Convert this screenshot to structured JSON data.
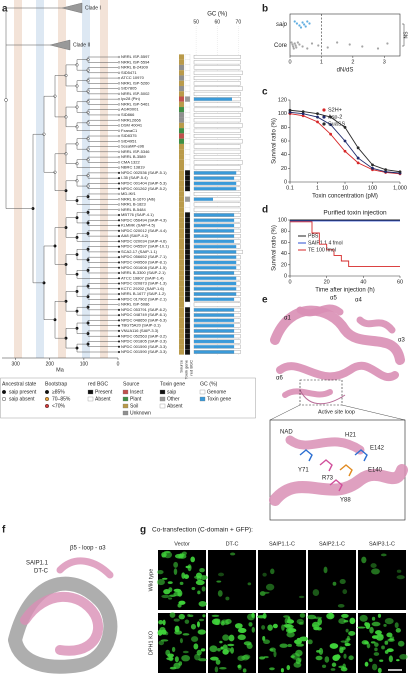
{
  "panel_labels": [
    "a",
    "b",
    "c",
    "d",
    "e",
    "f",
    "g"
  ],
  "tree": {
    "clades": [
      "Clade I",
      "Clade II"
    ],
    "time_axis": {
      "label": "Ma",
      "xlim": [
        340,
        0
      ],
      "xticks": [
        300,
        200,
        100,
        0
      ]
    },
    "gc_axis": {
      "title": "GC (%)",
      "xlim": [
        49,
        76
      ],
      "xticks": [
        50,
        60,
        70
      ]
    },
    "columns": [
      "Source",
      "Toxin gene",
      "red BGC"
    ],
    "leaves": [
      {
        "name": "NRRL ISP-5597",
        "source": "Soil",
        "toxin": "Absent",
        "genome_gc": 71,
        "toxin_gc": null
      },
      {
        "name": "NRRL ISP-5594",
        "source": "Soil",
        "toxin": "Absent",
        "genome_gc": 71,
        "toxin_gc": null
      },
      {
        "name": "NRRL B-24309",
        "source": "Unknown",
        "toxin": "Absent",
        "genome_gc": 71,
        "toxin_gc": null
      },
      {
        "name": "SID5471",
        "source": "Soil",
        "toxin": "Absent",
        "genome_gc": 72,
        "toxin_gc": null
      },
      {
        "name": "ATCC 10970",
        "source": "Unknown",
        "toxin": "Absent",
        "genome_gc": 71,
        "toxin_gc": null
      },
      {
        "name": "NRRL ISP-5260",
        "source": "Soil",
        "toxin": "Absent",
        "genome_gc": 71,
        "toxin_gc": null
      },
      {
        "name": "SID7805",
        "source": "Unknown",
        "toxin": "Absent",
        "genome_gc": 72,
        "toxin_gc": null
      },
      {
        "name": "NRRL ISP-5002",
        "source": "Soil",
        "toxin": "Absent",
        "genome_gc": 71,
        "toxin_gc": null
      },
      {
        "name": "lyc28 (Pin)",
        "source": "Insect",
        "toxin": "Other",
        "genome_gc": 71,
        "toxin_gc": 67
      },
      {
        "name": "NRRL ISP-5461",
        "source": "Soil",
        "toxin": "Absent",
        "genome_gc": 71,
        "toxin_gc": null
      },
      {
        "name": "AGR0001",
        "source": "Plant",
        "toxin": "Absent",
        "genome_gc": 72,
        "toxin_gc": null
      },
      {
        "name": "SID866",
        "source": "Unknown",
        "toxin": "Absent",
        "genome_gc": 71,
        "toxin_gc": null
      },
      {
        "name": "NRRL2666",
        "source": "Unknown",
        "toxin": "Absent",
        "genome_gc": 71,
        "toxin_gc": null
      },
      {
        "name": "DSM 40041",
        "source": "Soil",
        "toxin": "Absent",
        "genome_gc": 72,
        "toxin_gc": null
      },
      {
        "name": "FxanaC1",
        "source": "Plant",
        "toxin": "Absent",
        "genome_gc": 71,
        "toxin_gc": null
      },
      {
        "name": "SID8375",
        "source": "Insect",
        "toxin": "Absent",
        "genome_gc": 71,
        "toxin_gc": null
      },
      {
        "name": "SID4951",
        "source": "Plant",
        "toxin": "Absent",
        "genome_gc": 72,
        "toxin_gc": null
      },
      {
        "name": "SceaMP-e96",
        "source": "Soil",
        "toxin": "Absent",
        "genome_gc": 71,
        "toxin_gc": null
      },
      {
        "name": "NRRL ISP-5346",
        "source": "Soil",
        "toxin": "Absent",
        "genome_gc": 71,
        "toxin_gc": null
      },
      {
        "name": "NRRL B-3589",
        "source": "Soil",
        "toxin": "Absent",
        "genome_gc": 71,
        "toxin_gc": null
      },
      {
        "name": "CMA 1322",
        "source": "Soil",
        "toxin": "Absent",
        "genome_gc": 72,
        "toxin_gc": null
      },
      {
        "name": "NBRC 13819",
        "source": "Soil",
        "toxin": "Absent",
        "genome_gc": 71,
        "toxin_gc": null
      },
      {
        "name": "NPDC 002536 (SAIP-5.1)",
        "source": "Soil",
        "toxin": "saip",
        "genome_gc": 71,
        "toxin_gc": 69
      },
      {
        "name": "I-35 (SAIP-5.4)",
        "source": "Soil",
        "toxin": "saip",
        "genome_gc": 71,
        "toxin_gc": 68
      },
      {
        "name": "NPDC 001404 (SAIP-5.3)",
        "source": "Soil",
        "toxin": "saip",
        "genome_gc": 71,
        "toxin_gc": 69
      },
      {
        "name": "NPDC 001262 (SAIP-5.2)",
        "source": "Soil",
        "toxin": "saip",
        "genome_gc": 71,
        "toxin_gc": 69
      },
      {
        "name": "MD-IKf1",
        "source": "Soil",
        "toxin": "Absent",
        "genome_gc": 71,
        "toxin_gc": null
      },
      {
        "name": "NRRL B-1670 (Alb)",
        "source": "Soil",
        "toxin": "Other",
        "genome_gc": 71,
        "toxin_gc": 58
      },
      {
        "name": "NRRL B-1823",
        "source": "Soil",
        "toxin": "Absent",
        "genome_gc": 71,
        "toxin_gc": null
      },
      {
        "name": "NRRL B-5484",
        "source": "Soil",
        "toxin": "Absent",
        "genome_gc": 71,
        "toxin_gc": null
      },
      {
        "name": "MBT76 (SAIP-4.1)",
        "source": "Soil",
        "toxin": "saip",
        "genome_gc": 71,
        "toxin_gc": 68
      },
      {
        "name": "NPDC 056494 (SAIP-4.3)",
        "source": "Soil",
        "toxin": "saip",
        "genome_gc": 71,
        "toxin_gc": 68
      },
      {
        "name": "KLMMK (SAIP-4.5)",
        "source": "Soil",
        "toxin": "saip",
        "genome_gc": 71,
        "toxin_gc": 68
      },
      {
        "name": "NPDC 020012 (SAIP-4.4)",
        "source": "Soil",
        "toxin": "saip",
        "genome_gc": 71,
        "toxin_gc": 68
      },
      {
        "name": "AA8 (SAIP-4.2)",
        "source": "Soil",
        "toxin": "saip",
        "genome_gc": 71,
        "toxin_gc": 68
      },
      {
        "name": "NPDC 020034 (SAIP-4.6)",
        "source": "Soil",
        "toxin": "saip",
        "genome_gc": 71,
        "toxin_gc": 68
      },
      {
        "name": "NPDC 045597 (SAIP-10.1)",
        "source": "Soil",
        "toxin": "saip",
        "genome_gc": 71,
        "toxin_gc": 69
      },
      {
        "name": "SCA2-17 (SAIP-1.1)",
        "source": "Soil",
        "toxin": "saip",
        "genome_gc": 72,
        "toxin_gc": 69
      },
      {
        "name": "NPDC 056652 (SAIP-7.1)",
        "source": "Soil",
        "toxin": "saip",
        "genome_gc": 71,
        "toxin_gc": 69
      },
      {
        "name": "NPDC 049569 (SAIP-8.1)",
        "source": "Soil",
        "toxin": "saip",
        "genome_gc": 71,
        "toxin_gc": 69
      },
      {
        "name": "NPDC 001608 (SAIP-1.5)",
        "source": "Soil",
        "toxin": "saip",
        "genome_gc": 71,
        "toxin_gc": 69
      },
      {
        "name": "NRRL B-3300 (SAIP-2.1)",
        "source": "Soil",
        "toxin": "saip",
        "genome_gc": 71,
        "toxin_gc": 68
      },
      {
        "name": "ATCC 19807 (SAIP-1.4)",
        "source": "Soil",
        "toxin": "saip",
        "genome_gc": 71,
        "toxin_gc": 69
      },
      {
        "name": "NPDC 020873 (SAIP-1.3)",
        "source": "Soil",
        "toxin": "saip",
        "genome_gc": 71,
        "toxin_gc": 69
      },
      {
        "name": "KCTC 29202 (SAIP-1.6)",
        "source": "Soil",
        "toxin": "saip",
        "genome_gc": 71,
        "toxin_gc": 69
      },
      {
        "name": "NRRL B-1677 (SAIP-1.2)",
        "source": "Soil",
        "toxin": "saip",
        "genome_gc": 71,
        "toxin_gc": 69
      },
      {
        "name": "NPDC 017902 (SAIP-2.1)",
        "source": "Soil",
        "toxin": "saip",
        "genome_gc": 71,
        "toxin_gc": 68
      },
      {
        "name": "NRRL ISP-5086",
        "source": "Soil",
        "toxin": "Absent",
        "genome_gc": 71,
        "toxin_gc": null
      },
      {
        "name": "NPDC 053791 (SAIP-6.2)",
        "source": "Soil",
        "toxin": "saip",
        "genome_gc": 71,
        "toxin_gc": 68
      },
      {
        "name": "NPDC 048749 (SAIP-6.1)",
        "source": "Soil",
        "toxin": "saip",
        "genome_gc": 71,
        "toxin_gc": 68
      },
      {
        "name": "NPDC 048650 (SAIP-6.3)",
        "source": "Soil",
        "toxin": "saip",
        "genome_gc": 71,
        "toxin_gc": 68
      },
      {
        "name": "TBG75A20 (SAIP-3.1)",
        "source": "Soil",
        "toxin": "saip",
        "genome_gc": 71,
        "toxin_gc": 68
      },
      {
        "name": "VNUA116 (SAIP-3.3)",
        "source": "Soil",
        "toxin": "saip",
        "genome_gc": 71,
        "toxin_gc": 68
      },
      {
        "name": "NPDC 052563 (SAIP-3.2)",
        "source": "Soil",
        "toxin": "saip",
        "genome_gc": 71,
        "toxin_gc": 68
      },
      {
        "name": "NPDC 001805 (SAIP-3.3)",
        "source": "Soil",
        "toxin": "saip",
        "genome_gc": 71,
        "toxin_gc": 68
      },
      {
        "name": "NPDC 001590 (SAIP-3.3)",
        "source": "Soil",
        "toxin": "saip",
        "genome_gc": 71,
        "toxin_gc": 68
      },
      {
        "name": "NPDC 001590 (SAIP-3.3)",
        "source": "Soil",
        "toxin": "saip",
        "genome_gc": 71,
        "toxin_gc": 68
      }
    ]
  },
  "legend": {
    "ancestral": {
      "title": "Ancestral state",
      "items": [
        {
          "label": "saip present",
          "color": "#111111"
        },
        {
          "label": "saip absent",
          "color": "#ffffff"
        }
      ]
    },
    "bootstrap": {
      "title": "Bootstrap",
      "items": [
        {
          "label": "≥85%",
          "color": "#111111"
        },
        {
          "label": "70–85%",
          "color": "#e8a13a"
        },
        {
          "label": "<70%",
          "color": "#d23b3b"
        }
      ]
    },
    "bgc": {
      "title": "red BGC",
      "items": [
        {
          "label": "Present",
          "color": "#111111"
        },
        {
          "label": "Absent",
          "color": "#ffffff"
        }
      ]
    },
    "source": {
      "title": "Source",
      "items": [
        {
          "label": "Insect",
          "color": "#c0504d"
        },
        {
          "label": "Plant",
          "color": "#3f8f45"
        },
        {
          "label": "Soil",
          "color": "#b99a4a"
        },
        {
          "label": "Unknown",
          "color": "#8f8f8f"
        }
      ]
    },
    "toxin": {
      "title": "Toxin gene",
      "items": [
        {
          "label": "saip",
          "color": "#111111"
        },
        {
          "label": "Other",
          "color": "#9a9a9a"
        },
        {
          "label": "Absent",
          "color": "#ffffff"
        }
      ]
    },
    "gc": {
      "title": "GC (%)",
      "items": [
        {
          "label": "Genome",
          "color": "#ffffff"
        },
        {
          "label": "Toxin gene",
          "color": "#3a9ad9"
        }
      ]
    }
  },
  "chart_data": [
    {
      "type": "strip",
      "x_label": "dN/dS",
      "categories": [
        "saip",
        "Core"
      ],
      "xlim": [
        0,
        3.5
      ],
      "xticks": [
        0,
        1,
        2,
        3
      ],
      "refline": 1,
      "annotation": "NS",
      "colors": [
        "#3a9ad9",
        "#8f8f8f"
      ],
      "values": [
        [
          0.15,
          0.22,
          0.3,
          0.35,
          0.4,
          0.45,
          0.5,
          0.55,
          0.62
        ],
        [
          0.05,
          0.08,
          0.1,
          0.12,
          0.15,
          0.18,
          0.2,
          0.25,
          0.3,
          0.4,
          0.55,
          0.7,
          0.9,
          1.2,
          1.5,
          1.9,
          2.3,
          2.8,
          3.1
        ]
      ]
    },
    {
      "type": "line",
      "log_x": true,
      "x_label": "Toxin concentration (pM)",
      "y_label": "Survival ratio (%)",
      "xlim": [
        0.1,
        1000
      ],
      "xticks": [
        0.1,
        1,
        10,
        100,
        {
          "value": 1000,
          "label": "1,000"
        }
      ],
      "ylim": [
        0,
        120
      ],
      "yticks": [
        0,
        20,
        40,
        60,
        80,
        100,
        120
      ],
      "x": [
        0.1,
        0.3,
        1,
        3,
        10,
        30,
        100,
        300,
        1000
      ],
      "series": [
        {
          "name": "S2H+",
          "color": "#d62728",
          "values": [
            100,
            97,
            88,
            70,
            45,
            28,
            18,
            14,
            12
          ]
        },
        {
          "name": "Asp-2",
          "color": "#1f2a6b",
          "values": [
            102,
            100,
            95,
            84,
            60,
            35,
            20,
            15,
            13
          ]
        },
        {
          "name": "SuaSS",
          "color": "#2a2a2a",
          "values": [
            105,
            103,
            100,
            95,
            80,
            50,
            25,
            18,
            15
          ]
        }
      ]
    },
    {
      "type": "step",
      "title": "Purified toxin injection",
      "x_label": "Time after injection (h)",
      "y_label": "Survival ratio (%)",
      "xlim": [
        0,
        60
      ],
      "xticks": [
        0,
        20,
        40,
        60
      ],
      "ylim": [
        0,
        100
      ],
      "yticks": [
        0,
        20,
        40,
        60,
        80,
        100
      ],
      "series": [
        {
          "name": "PBS",
          "color": "#222222",
          "x": [
            0,
            60
          ],
          "values": [
            100,
            100
          ]
        },
        {
          "name": "SAIP1.1 4 fmol",
          "color": "#2c4fd1",
          "x": [
            0,
            60
          ],
          "values": [
            100,
            100
          ]
        },
        {
          "name": "TE 100 fmol",
          "color": "#d62728",
          "x": [
            0,
            12,
            16,
            20,
            24,
            28,
            32,
            60
          ],
          "values": [
            100,
            80,
            60,
            50,
            40,
            30,
            20,
            20
          ]
        }
      ]
    }
  ],
  "structure_e": {
    "labels": [
      "α1",
      "α5",
      "α4",
      "α3",
      "α6",
      "Active site loop",
      "NAD",
      "Y71",
      "R73",
      "E140",
      "E142",
      "Y88",
      "H21"
    ]
  },
  "structure_f": {
    "labels": [
      "β5 - loop - α3",
      "SAIP1.1",
      "DT-C"
    ]
  },
  "panel_g": {
    "title": "Co-transfection (C-domain + GFP):",
    "columns": [
      "Vector",
      "DT-C",
      "SAIP1.1-C",
      "SAIP2.1-C",
      "SAIP3.1-C"
    ],
    "rows": [
      "Wild type",
      "DPH1 KO"
    ]
  }
}
